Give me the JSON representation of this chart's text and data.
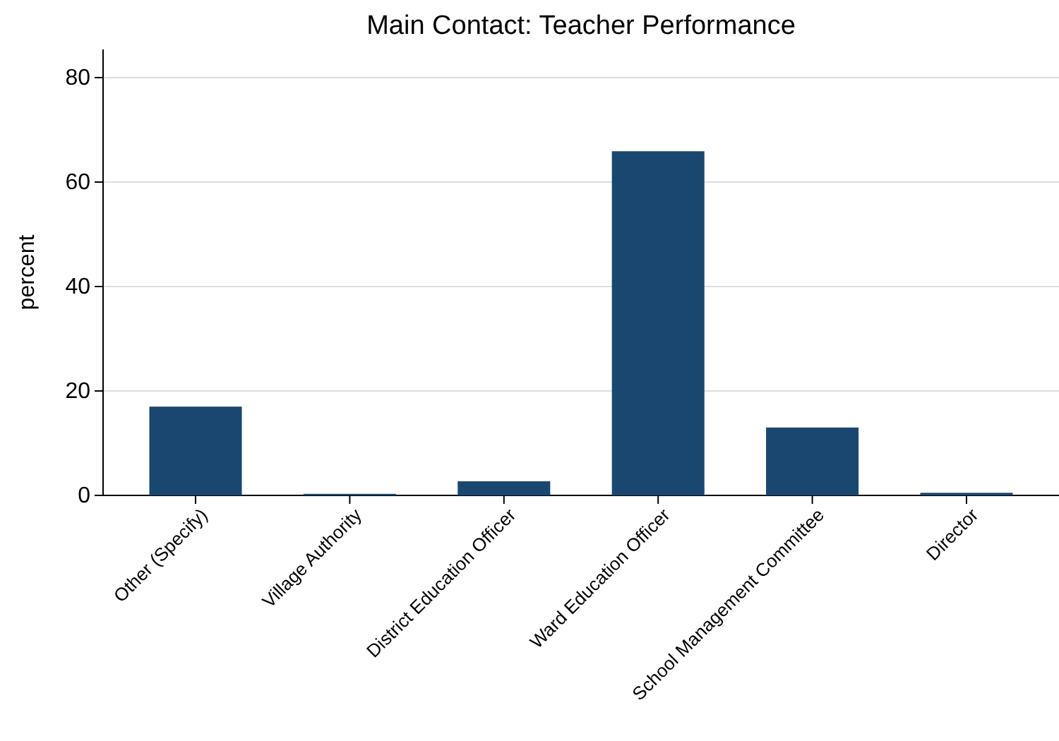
{
  "chart_data": {
    "type": "bar",
    "title": "Main Contact: Teacher Performance",
    "ylabel": "percent",
    "categories": [
      "Other (Specify)",
      "Village Authority",
      "District Education Officer",
      "Ward Education Officer",
      "School Management Committee",
      "Director"
    ],
    "values": [
      17,
      0.3,
      2.7,
      65.9,
      13,
      0.5
    ],
    "color": "#1a476f",
    "ylim": [
      0,
      85.4
    ],
    "yticks": [
      0,
      20,
      40,
      60,
      80
    ],
    "grid": "y"
  }
}
